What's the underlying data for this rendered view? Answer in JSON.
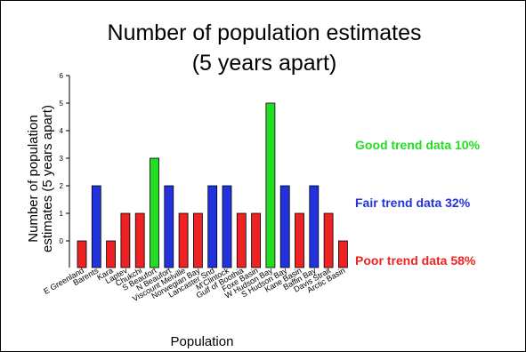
{
  "chart_data": {
    "type": "bar",
    "title_lines": [
      "Number of population estimates",
      "(5 years apart)"
    ],
    "xlabel": "Population",
    "ylabel_lines": [
      "Number of population",
      "estimates (5 years apart)"
    ],
    "ylim": [
      0,
      6
    ],
    "yticks": [
      "0",
      "1",
      "2",
      "3",
      "4",
      "5",
      "6"
    ],
    "grid": false,
    "categories": [
      "E Greenland",
      "Barents",
      "Kara",
      "Laptev",
      "Chukchi",
      "S Beaufort",
      "N Beaufort",
      "Viscount Melville",
      "Norwegian Bay",
      "Lancaster Snd",
      "M'Clintock",
      "Gulf of Boothia",
      "Foxe Basin",
      "W Hudson Bay",
      "S Hudson Bay",
      "Kane Basin",
      "Baffin Bay",
      "Davis Strait",
      "Arctic Basin"
    ],
    "values": [
      0,
      2,
      0,
      1,
      1,
      3,
      2,
      1,
      1,
      2,
      2,
      1,
      1,
      5,
      2,
      1,
      2,
      1,
      0
    ],
    "bar_quality": [
      "poor",
      "fair",
      "poor",
      "poor",
      "poor",
      "good",
      "fair",
      "poor",
      "poor",
      "fair",
      "fair",
      "poor",
      "poor",
      "good",
      "fair",
      "poor",
      "fair",
      "poor",
      "poor"
    ],
    "colors": {
      "good": "#22dd22",
      "fair": "#2233dd",
      "poor": "#ee2222"
    },
    "annotations": [
      {
        "text": "Good trend data 10%",
        "quality": "good"
      },
      {
        "text": "Fair trend data 32%",
        "quality": "fair"
      },
      {
        "text": "Poor trend data  58%",
        "quality": "poor"
      }
    ]
  }
}
